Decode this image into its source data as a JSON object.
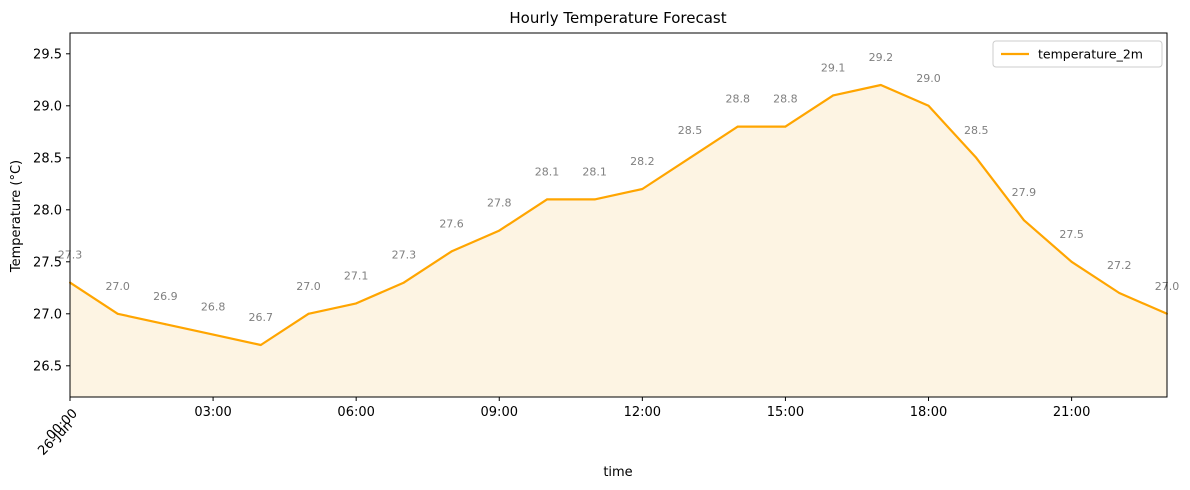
{
  "chart_data": {
    "type": "line",
    "title": "Hourly Temperature Forecast",
    "xlabel": "time",
    "ylabel": "Temperature (°C)",
    "x": [
      "00:00",
      "01:00",
      "02:00",
      "03:00",
      "04:00",
      "05:00",
      "06:00",
      "07:00",
      "08:00",
      "09:00",
      "10:00",
      "11:00",
      "12:00",
      "13:00",
      "14:00",
      "15:00",
      "16:00",
      "17:00",
      "18:00",
      "19:00",
      "20:00",
      "21:00",
      "22:00",
      "23:00"
    ],
    "series": [
      {
        "name": "temperature_2m",
        "color": "#FFA500",
        "values": [
          27.3,
          27.0,
          26.9,
          26.8,
          26.7,
          27.0,
          27.1,
          27.3,
          27.6,
          27.8,
          28.1,
          28.1,
          28.2,
          28.5,
          28.8,
          28.8,
          29.1,
          29.2,
          29.0,
          28.5,
          27.9,
          27.5,
          27.2,
          27.0
        ],
        "data_labels": [
          "27.3",
          "27.0",
          "26.9",
          "26.8",
          "26.7",
          "27.0",
          "27.1",
          "27.3",
          "27.6",
          "27.8",
          "28.1",
          "28.1",
          "28.2",
          "28.5",
          "28.8",
          "28.8",
          "29.1",
          "29.2",
          "29.0",
          "28.5",
          "27.9",
          "27.5",
          "27.2",
          "27.0"
        ]
      }
    ],
    "fill_under": true,
    "fill_color": "#FDF4E3",
    "xlim": [
      "00:00",
      "23:00"
    ],
    "ylim": [
      26.2,
      29.7
    ],
    "x_ticks": [
      {
        "value": "00:00",
        "label": "00:00",
        "sublabel": "26-Jun"
      },
      {
        "value": "03:00",
        "label": "03:00"
      },
      {
        "value": "06:00",
        "label": "06:00"
      },
      {
        "value": "09:00",
        "label": "09:00"
      },
      {
        "value": "12:00",
        "label": "12:00"
      },
      {
        "value": "15:00",
        "label": "15:00"
      },
      {
        "value": "18:00",
        "label": "18:00"
      },
      {
        "value": "21:00",
        "label": "21:00"
      }
    ],
    "y_ticks": [
      26.5,
      27.0,
      27.5,
      28.0,
      28.5,
      29.0,
      29.5
    ],
    "y_tick_labels": [
      "26.5",
      "27.0",
      "27.5",
      "28.0",
      "28.5",
      "29.0",
      "29.5"
    ],
    "grid": false,
    "legend_position": "top-right"
  }
}
